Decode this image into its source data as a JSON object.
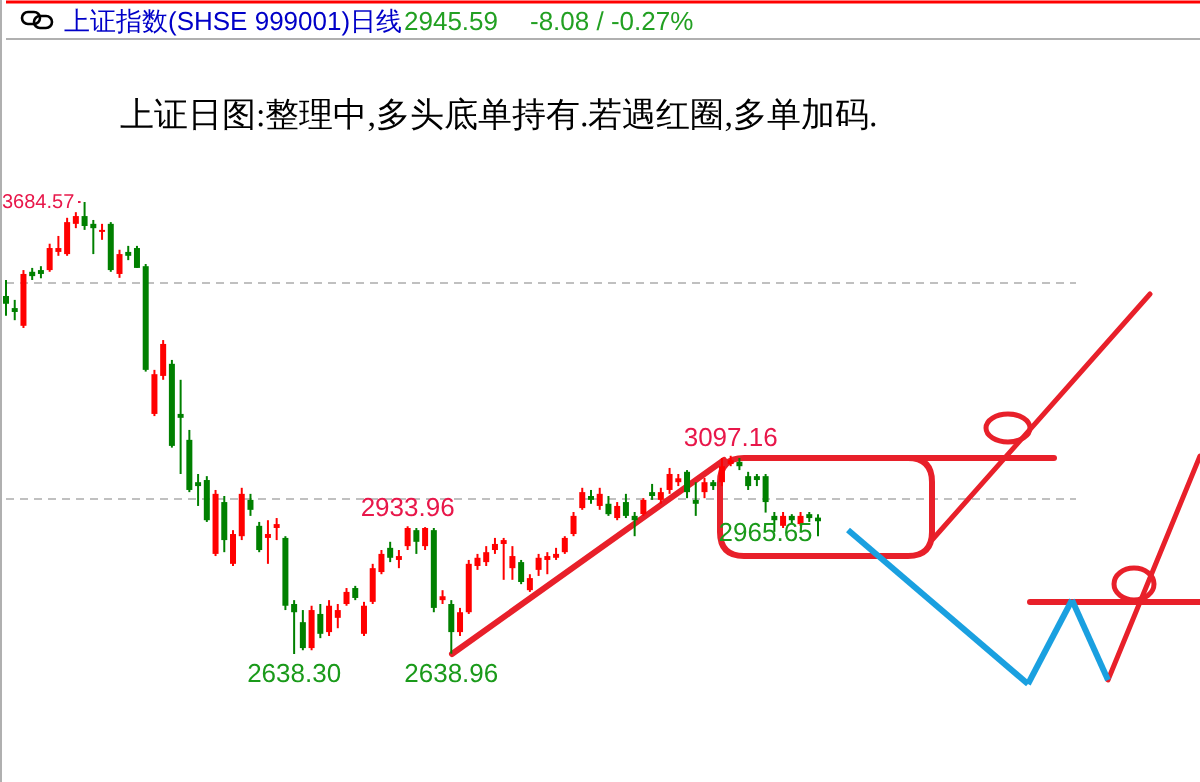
{
  "chart_data": {
    "type": "candlestick",
    "title": "上证日图:整理中,多头底单持有.若遇红圈,多单加码.",
    "categories": [
      null,
      null,
      null,
      null,
      null,
      null,
      null,
      null,
      null,
      null,
      null,
      null,
      null,
      null,
      null,
      null,
      null,
      null,
      null,
      null,
      null,
      null,
      null,
      null,
      null,
      null,
      null,
      null,
      null,
      null,
      null,
      null,
      null,
      null,
      null,
      null,
      null,
      null,
      null,
      null,
      null,
      null,
      null,
      null,
      null,
      null,
      null,
      null,
      null,
      null,
      null,
      null,
      null,
      null,
      null,
      null,
      null,
      null,
      null,
      null,
      null,
      null,
      null,
      null,
      null,
      null,
      null,
      null,
      null,
      null,
      null,
      null,
      null,
      null,
      null,
      null,
      null,
      null,
      null,
      null,
      null,
      null,
      null,
      null,
      null,
      null,
      null,
      null,
      null,
      null,
      null,
      null,
      null,
      null
    ],
    "ohlc": [
      [
        3467,
        3504,
        3421,
        3449
      ],
      [
        3439,
        3458,
        3411,
        3430
      ],
      [
        3398,
        3527,
        3393,
        3518
      ],
      [
        3523,
        3532,
        3504,
        3513
      ],
      [
        3527,
        3536,
        3508,
        3518
      ],
      [
        3527,
        3588,
        3523,
        3578
      ],
      [
        3569,
        3606,
        3560,
        3578
      ],
      [
        3564,
        3648,
        3560,
        3638
      ],
      [
        3634,
        3661,
        3624,
        3652
      ],
      [
        3652,
        3684.57,
        3620,
        3629
      ],
      [
        3634,
        3643,
        3564,
        3624
      ],
      [
        3616,
        3634,
        3597,
        3620
      ],
      [
        3634,
        3638,
        3523,
        3527
      ],
      [
        3518,
        3574,
        3509,
        3564
      ],
      [
        3569,
        3583,
        3550,
        3560
      ],
      [
        3578,
        3583,
        3532,
        3532
      ],
      [
        3536,
        3541,
        3292,
        3296
      ],
      [
        3194,
        3296,
        3189,
        3286
      ],
      [
        3282,
        3365,
        3273,
        3356
      ],
      [
        3310,
        3319,
        3116,
        3120
      ],
      [
        3194,
        3273,
        3055,
        3185
      ],
      [
        3134,
        3157,
        3013,
        3018
      ],
      [
        3036,
        3055,
        2981,
        3027
      ],
      [
        3041,
        3050,
        2944,
        2948
      ],
      [
        2870,
        3018,
        2865,
        3009
      ],
      [
        2990,
        3004,
        2874,
        2902
      ],
      [
        2847,
        2925,
        2842,
        2916
      ],
      [
        2911,
        3023,
        2902,
        3009
      ],
      [
        2995,
        3009,
        2958,
        2972
      ],
      [
        2935,
        2944,
        2874,
        2879
      ],
      [
        2907,
        2948,
        2847,
        2916
      ],
      [
        2930,
        2953,
        2902,
        2939
      ],
      [
        2907,
        2911,
        2740,
        2750
      ],
      [
        2754,
        2763,
        2638.3,
        2735
      ],
      [
        2712,
        2740,
        2647,
        2652
      ],
      [
        2652,
        2750,
        2647,
        2740
      ],
      [
        2731,
        2754,
        2675,
        2685
      ],
      [
        2689,
        2763,
        2680,
        2750
      ],
      [
        2722,
        2754,
        2698,
        2740
      ],
      [
        2754,
        2791,
        2750,
        2782
      ],
      [
        2791,
        2796,
        2763,
        2768
      ],
      [
        2685,
        2759,
        2680,
        2750
      ],
      [
        2759,
        2847,
        2754,
        2837
      ],
      [
        2828,
        2879,
        2823,
        2870
      ],
      [
        2884,
        2898,
        2851,
        2861
      ],
      [
        2856,
        2879,
        2837,
        2865
      ],
      [
        2888,
        2933.96,
        2879,
        2930
      ],
      [
        2925,
        2930,
        2870,
        2898
      ],
      [
        2888,
        2932,
        2879,
        2930
      ],
      [
        2925,
        2930,
        2735,
        2745
      ],
      [
        2763,
        2786,
        2754,
        2772
      ],
      [
        2754,
        2763,
        2638.96,
        2689
      ],
      [
        2689,
        2745,
        2680,
        2735
      ],
      [
        2735,
        2856,
        2731,
        2847
      ],
      [
        2842,
        2870,
        2833,
        2861
      ],
      [
        2851,
        2888,
        2842,
        2874
      ],
      [
        2879,
        2907,
        2870,
        2893
      ],
      [
        2893,
        2907,
        2810,
        2902
      ],
      [
        2837,
        2888,
        2810,
        2865
      ],
      [
        2851,
        2856,
        2800,
        2805
      ],
      [
        2786,
        2823,
        2782,
        2814
      ],
      [
        2833,
        2870,
        2819,
        2861
      ],
      [
        2856,
        2874,
        2823,
        2865
      ],
      [
        2861,
        2884,
        2856,
        2870
      ],
      [
        2874,
        2911,
        2870,
        2907
      ],
      [
        2916,
        2967,
        2911,
        2958
      ],
      [
        2976,
        3023,
        2972,
        3013
      ],
      [
        3004,
        3018,
        2986,
        2995
      ],
      [
        2981,
        3023,
        2972,
        3009
      ],
      [
        2986,
        3004,
        2958,
        2962
      ],
      [
        2953,
        2990,
        2948,
        2981
      ],
      [
        2990,
        3009,
        2953,
        2958
      ],
      [
        2958,
        2967,
        2911,
        2948
      ],
      [
        2962,
        2999,
        2958,
        2995
      ],
      [
        3013,
        3032,
        2995,
        3004
      ],
      [
        2995,
        3023,
        2986,
        3013
      ],
      [
        3018,
        3069,
        3009,
        3055
      ],
      [
        3036,
        3055,
        3027,
        3045
      ],
      [
        3060,
        3064,
        2999,
        3013
      ],
      [
        2995,
        3036,
        2958,
        2986
      ],
      [
        3013,
        3046,
        2999,
        3036
      ],
      [
        3036,
        3041,
        3018,
        3027
      ],
      [
        3036,
        3092,
        3027,
        3073
      ],
      [
        3078,
        3097.16,
        3073,
        3087
      ],
      [
        3083,
        3092,
        3064,
        3073
      ],
      [
        3050,
        3060,
        3018,
        3027
      ],
      [
        3050,
        3055,
        3027,
        3041
      ],
      [
        3050,
        3055,
        2965.65,
        2990
      ],
      [
        2958,
        2967,
        2921,
        2948
      ],
      [
        2935,
        2967,
        2930,
        2958
      ],
      [
        2958,
        2962,
        2939,
        2948
      ],
      [
        2939,
        2967,
        2935,
        2958
      ],
      [
        2962,
        2967,
        2944,
        2953
      ],
      [
        2954,
        2962,
        2911,
        2945.59
      ]
    ],
    "colors": [
      "#008000",
      "#008000",
      "#ff0000",
      "#008000",
      "#008000",
      "#ff0000",
      "#ff0000",
      "#ff0000",
      "#ff0000",
      "#008000",
      "#008000",
      "#ff0000",
      "#008000",
      "#ff0000",
      "#008000",
      "#008000",
      "#008000",
      "#ff0000",
      "#ff0000",
      "#008000",
      "#008000",
      "#008000",
      "#008000",
      "#008000",
      "#ff0000",
      "#008000",
      "#ff0000",
      "#ff0000",
      "#008000",
      "#008000",
      "#ff0000",
      "#ff0000",
      "#008000",
      "#008000",
      "#008000",
      "#ff0000",
      "#008000",
      "#ff0000",
      "#ff0000",
      "#ff0000",
      "#008000",
      "#ff0000",
      "#ff0000",
      "#ff0000",
      "#008000",
      "#ff0000",
      "#ff0000",
      "#008000",
      "#ff0000",
      "#008000",
      "#ff0000",
      "#008000",
      "#ff0000",
      "#ff0000",
      "#ff0000",
      "#ff0000",
      "#ff0000",
      "#ff0000",
      "#ff0000",
      "#008000",
      "#ff0000",
      "#ff0000",
      "#ff0000",
      "#ff0000",
      "#ff0000",
      "#ff0000",
      "#ff0000",
      "#008000",
      "#ff0000",
      "#008000",
      "#ff0000",
      "#008000",
      "#008000",
      "#ff0000",
      "#008000",
      "#ff0000",
      "#ff0000",
      "#ff0000",
      "#008000",
      "#008000",
      "#ff0000",
      "#008000",
      "#ff0000",
      "#ff0000",
      "#008000",
      "#008000",
      "#008000",
      "#008000",
      "#008000",
      "#ff0000",
      "#008000",
      "#ff0000",
      "#008000",
      "#008000"
    ],
    "ref_lines": [
      {
        "axis": "y",
        "value": 3500,
        "line_style": "dashed",
        "color": "#c0c0c0"
      },
      {
        "axis": "y",
        "value": 3000,
        "line_style": "dashed",
        "color": "#c0c0c0"
      }
    ],
    "annotations": [
      "上证指数(SHSE 999001)日线",
      "2945.59",
      "-8.08 / -0.27%",
      "3684.57",
      {
        "text": "2933.96",
        "y": 2933.96
      },
      {
        "text": "3097.16",
        "y": 3097.16
      },
      {
        "text": "2638.30",
        "y": 2638.3
      },
      {
        "text": "2638.96",
        "y": 2638.96
      },
      {
        "text": "2965.65",
        "y": 2965.65
      }
    ]
  }
}
